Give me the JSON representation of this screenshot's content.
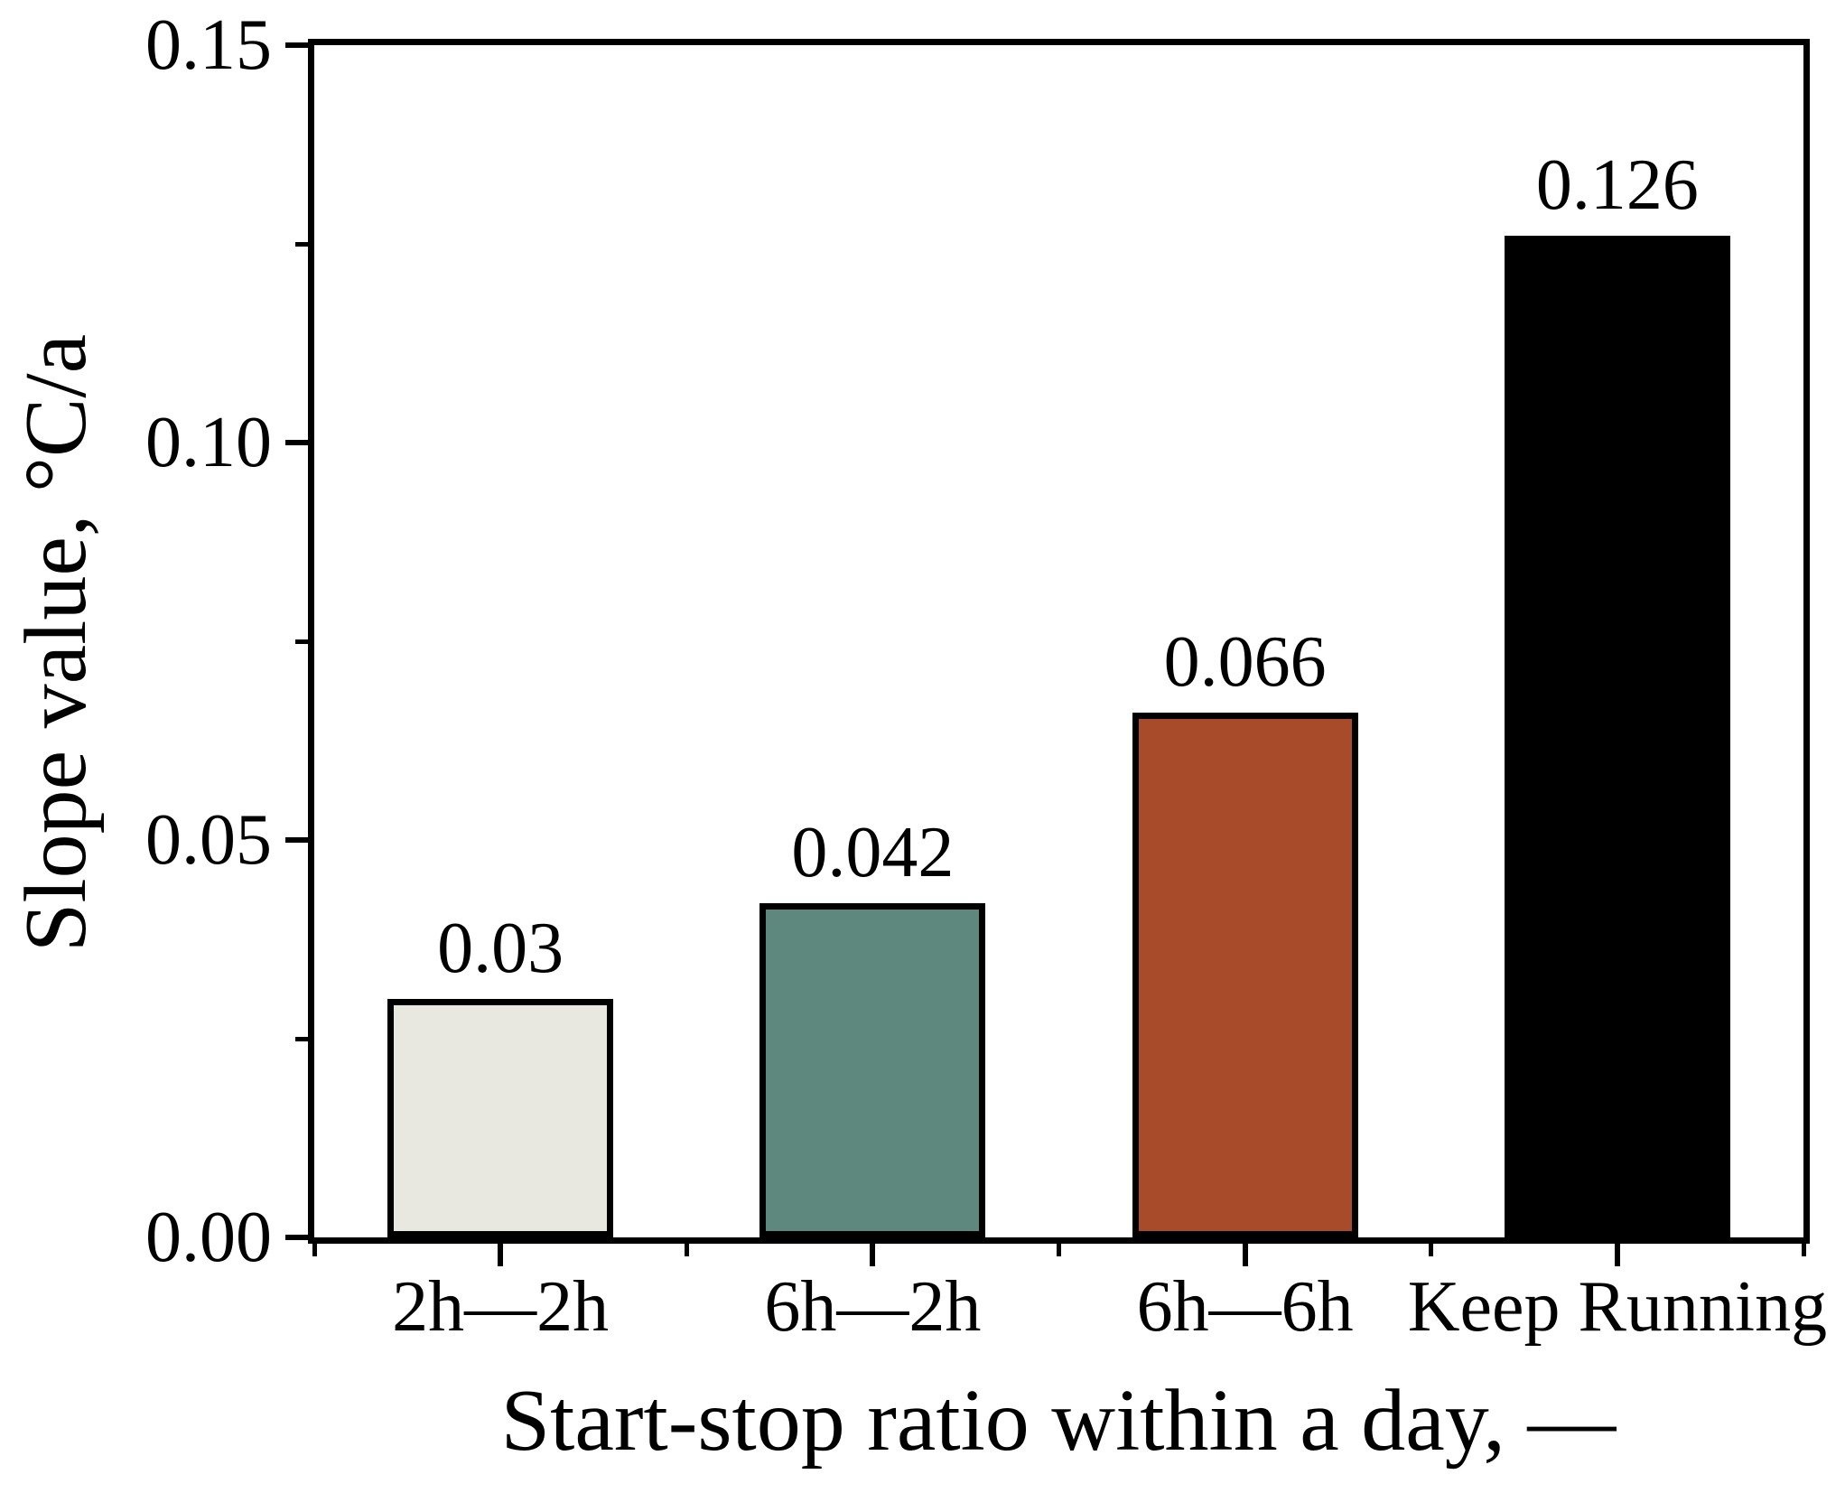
{
  "chart_data": {
    "type": "bar",
    "title": "",
    "xlabel": "Start-stop ratio within a day, —",
    "ylabel": "Slope value, °C/a",
    "categories": [
      "2h—2h",
      "6h—2h",
      "6h—6h",
      "Keep Running"
    ],
    "values": [
      0.03,
      0.042,
      0.066,
      0.126
    ],
    "value_labels": [
      "0.03",
      "0.042",
      "0.066",
      "0.126"
    ],
    "bar_colors": [
      "#e8e7e0",
      "#5e887d",
      "#a84b2b",
      "#000000"
    ],
    "bar_edge_color": "#000000",
    "ylim": [
      0,
      0.15
    ],
    "y_ticks": [
      {
        "value": 0.0,
        "label": "0.00"
      },
      {
        "value": 0.05,
        "label": "0.05"
      },
      {
        "value": 0.1,
        "label": "0.10"
      },
      {
        "value": 0.15,
        "label": "0.15"
      }
    ],
    "y_minor_ticks": [
      0.025,
      0.075,
      0.125
    ],
    "grid": false,
    "legend": null,
    "frame": "box",
    "background": "#ffffff",
    "text_color": "#000000"
  }
}
